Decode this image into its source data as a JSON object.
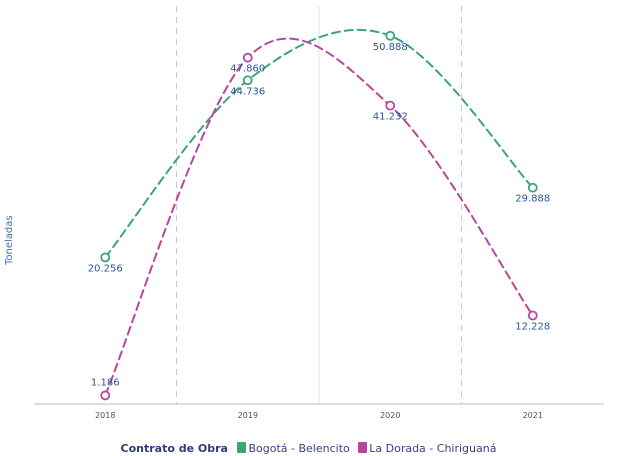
{
  "chart_data": {
    "type": "line",
    "categories": [
      "2018",
      "2019",
      "2020",
      "2021"
    ],
    "ylabel": "Toneladas",
    "ylim": [
      0,
      55000
    ],
    "legend_title": "Contrato de Obra",
    "legend_position": "bottom",
    "grid": "vertical dashed lines",
    "series": [
      {
        "name": "Bogotá - Belencito",
        "color": "#3aa57a",
        "values": [
          20256,
          44736,
          50888,
          29888
        ],
        "labels": [
          "20.256",
          "44.736",
          "50.888",
          "29.888"
        ]
      },
      {
        "name": "La Dorada - Chiriguaná",
        "color": "#b8479c",
        "values": [
          1186,
          47860,
          41232,
          12228
        ],
        "labels": [
          "1.186",
          "47.860",
          "41.232",
          "12.228"
        ]
      }
    ]
  }
}
